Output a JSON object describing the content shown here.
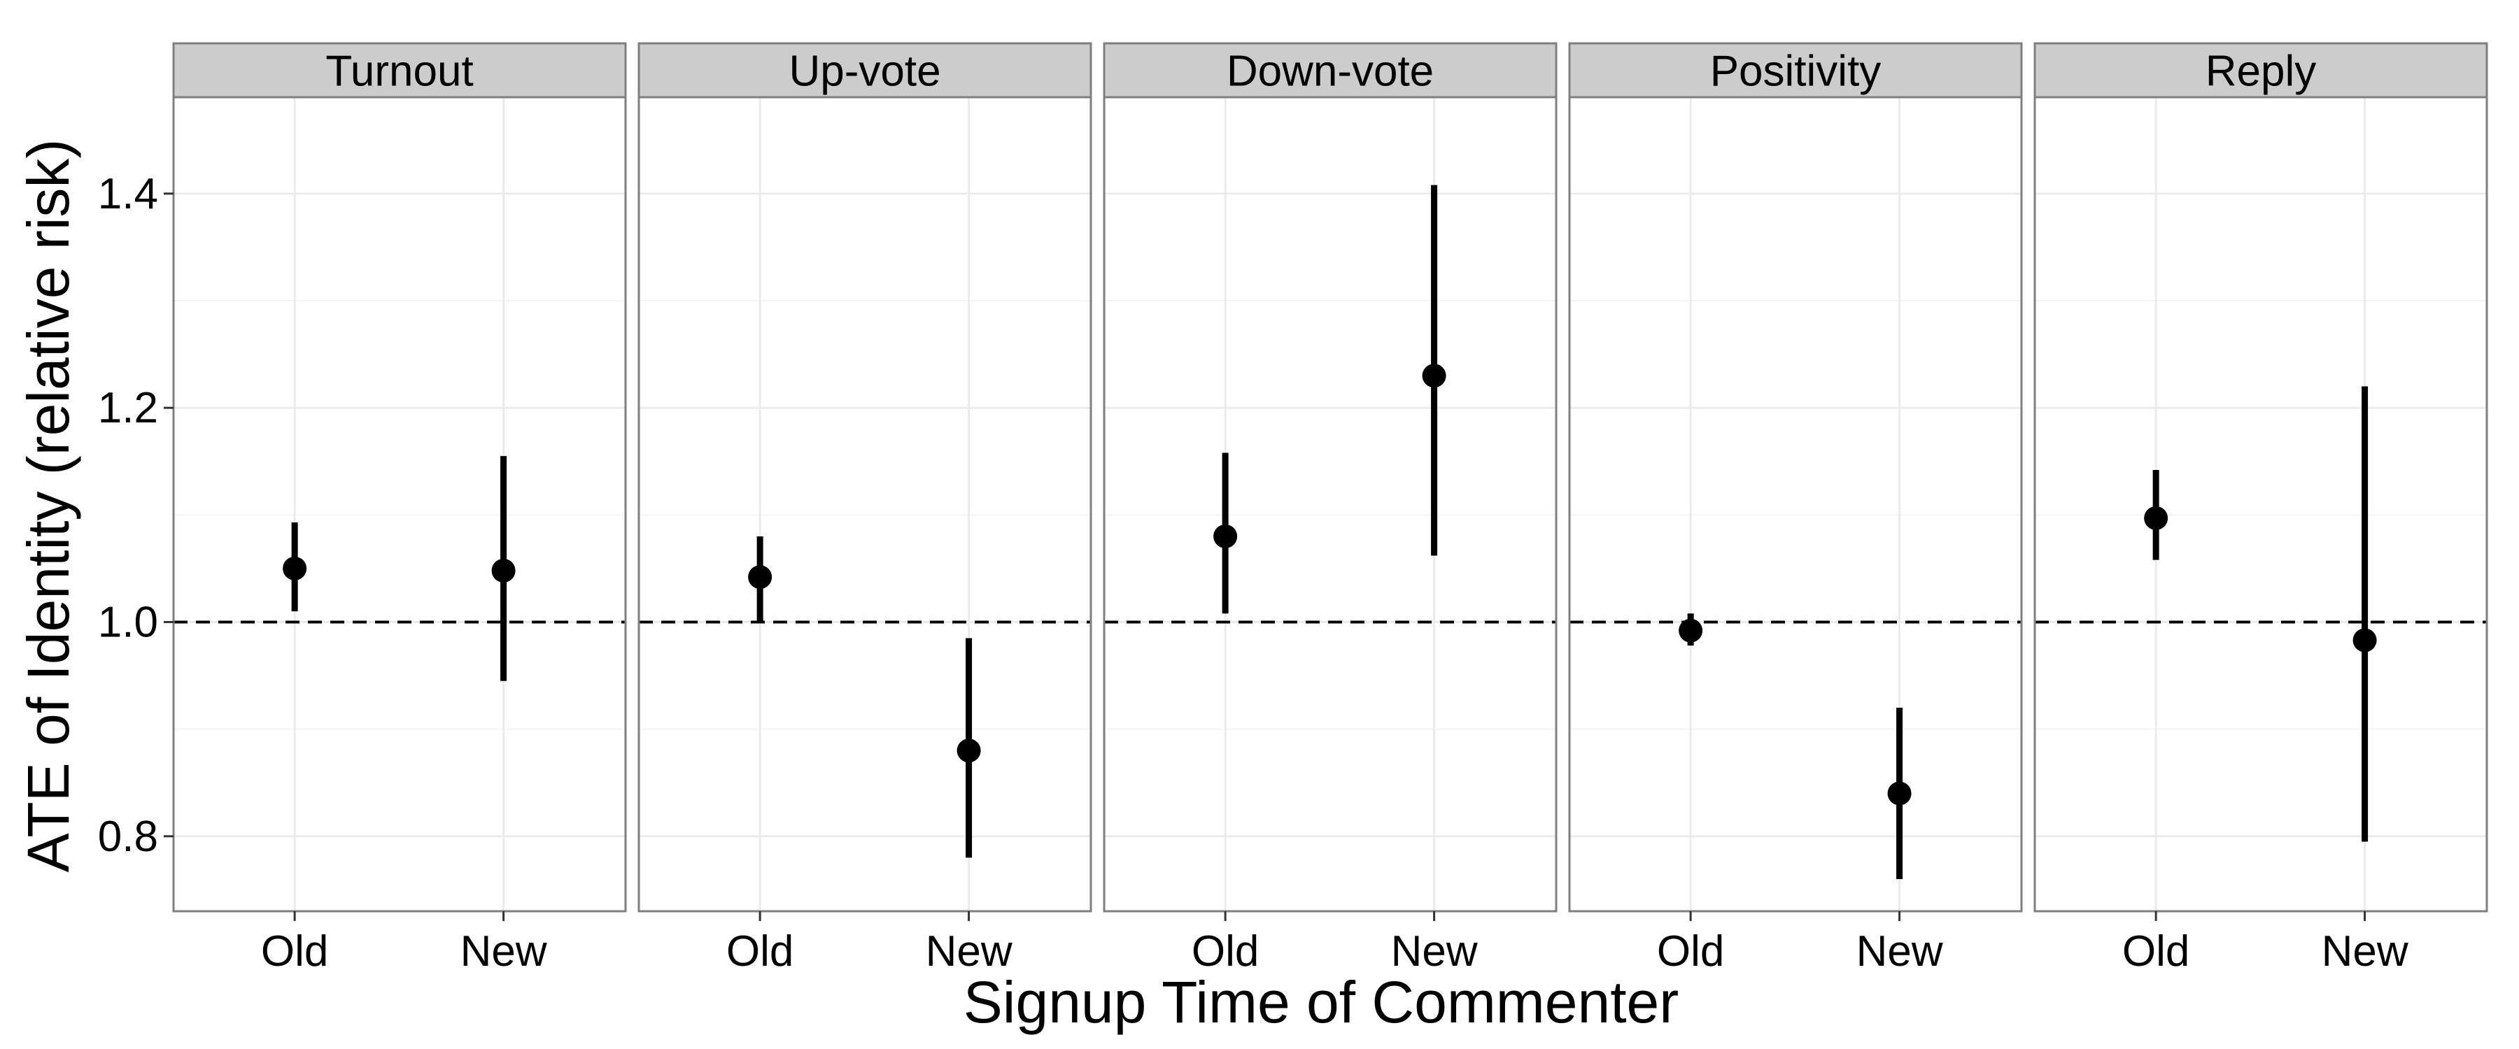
{
  "chart_data": {
    "type": "scatter",
    "subtype": "faceted point estimates with confidence intervals",
    "xlabel": "Signup Time of Commenter",
    "ylabel": "ATE of Identity (relative risk)",
    "categories": [
      "Old",
      "New"
    ],
    "y_ticks": [
      "0.8",
      "1.0",
      "1.2",
      "1.4"
    ],
    "ylim": [
      0.73,
      1.49
    ],
    "reference_line": {
      "y": 1.0,
      "style": "dashed"
    },
    "grid": true,
    "legend": "none",
    "colors": {
      "point": "#000000",
      "strip_bg": "#cccccc",
      "panel_border": "#7f7f7f",
      "grid": "#ebebeb"
    },
    "panels": [
      {
        "title": "Turnout",
        "points": [
          {
            "x": "Old",
            "y": 1.05,
            "low": 1.01,
            "high": 1.093
          },
          {
            "x": "New",
            "y": 1.048,
            "low": 0.945,
            "high": 1.155
          }
        ]
      },
      {
        "title": "Up-vote",
        "points": [
          {
            "x": "Old",
            "y": 1.042,
            "low": 1.0,
            "high": 1.08
          },
          {
            "x": "New",
            "y": 0.88,
            "low": 0.78,
            "high": 0.985
          }
        ]
      },
      {
        "title": "Down-vote",
        "points": [
          {
            "x": "Old",
            "y": 1.08,
            "low": 1.008,
            "high": 1.158
          },
          {
            "x": "New",
            "y": 1.23,
            "low": 1.062,
            "high": 1.408
          }
        ]
      },
      {
        "title": "Positivity",
        "points": [
          {
            "x": "Old",
            "y": 0.992,
            "low": 0.978,
            "high": 1.008
          },
          {
            "x": "New",
            "y": 0.84,
            "low": 0.76,
            "high": 0.92
          }
        ]
      },
      {
        "title": "Reply",
        "points": [
          {
            "x": "Old",
            "y": 1.097,
            "low": 1.058,
            "high": 1.142
          },
          {
            "x": "New",
            "y": 0.983,
            "low": 0.795,
            "high": 1.22
          }
        ]
      }
    ]
  }
}
